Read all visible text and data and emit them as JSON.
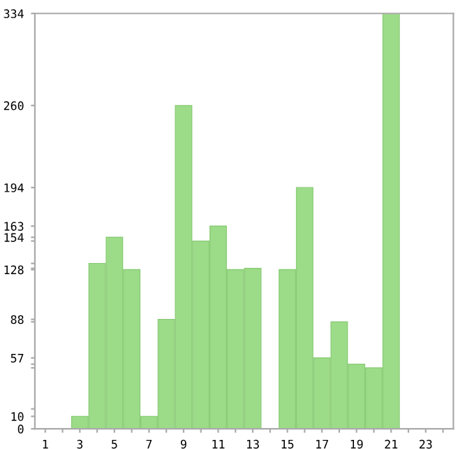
{
  "chart_data": {
    "type": "bar",
    "categories": [
      "1",
      null,
      "3",
      null,
      "5",
      null,
      "7",
      null,
      "9",
      null,
      "11",
      null,
      "13",
      null,
      "15",
      null,
      "17",
      null,
      "19",
      null,
      "21",
      null,
      "23",
      null
    ],
    "values": [
      0,
      0,
      10,
      133,
      154,
      128,
      10,
      88,
      260,
      151,
      163,
      128,
      129,
      0,
      128,
      194,
      57,
      86,
      52,
      49,
      334,
      0,
      0,
      0
    ],
    "color": "#9cdc88",
    "ylim": [
      0,
      334
    ],
    "yticks": [
      0,
      10,
      {
        "value": 16,
        "label": null
      },
      {
        "value": 49,
        "label": null
      },
      {
        "value": 52,
        "label": null
      },
      57,
      {
        "value": 86,
        "label": null
      },
      88,
      128,
      {
        "value": 129,
        "label": null
      },
      {
        "value": 133,
        "label": null
      },
      {
        "value": 151,
        "label": null
      },
      154,
      163,
      194,
      260,
      334
    ],
    "grid": false
  }
}
